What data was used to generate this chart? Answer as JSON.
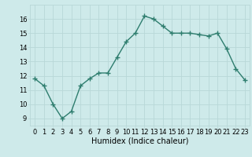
{
  "x": [
    0,
    1,
    2,
    3,
    4,
    5,
    6,
    7,
    8,
    9,
    10,
    11,
    12,
    13,
    14,
    15,
    16,
    17,
    18,
    19,
    20,
    21,
    22,
    23
  ],
  "y": [
    11.8,
    11.3,
    10.0,
    9.0,
    9.5,
    11.3,
    11.8,
    12.2,
    12.2,
    13.3,
    14.4,
    15.0,
    16.2,
    16.0,
    15.5,
    15.0,
    15.0,
    15.0,
    14.9,
    14.8,
    15.0,
    13.9,
    12.5,
    11.7
  ],
  "line_color": "#2e7d6e",
  "marker": "+",
  "marker_size": 4,
  "marker_linewidth": 1.0,
  "line_width": 1.0,
  "bg_color": "#ceeaea",
  "grid_color": "#b8d8d8",
  "xlabel": "Humidex (Indice chaleur)",
  "xlabel_fontsize": 7,
  "tick_fontsize": 6,
  "ylim": [
    8.5,
    17.0
  ],
  "xlim": [
    -0.5,
    23.5
  ],
  "yticks": [
    9,
    10,
    11,
    12,
    13,
    14,
    15,
    16
  ],
  "xticks": [
    0,
    1,
    2,
    3,
    4,
    5,
    6,
    7,
    8,
    9,
    10,
    11,
    12,
    13,
    14,
    15,
    16,
    17,
    18,
    19,
    20,
    21,
    22,
    23
  ]
}
